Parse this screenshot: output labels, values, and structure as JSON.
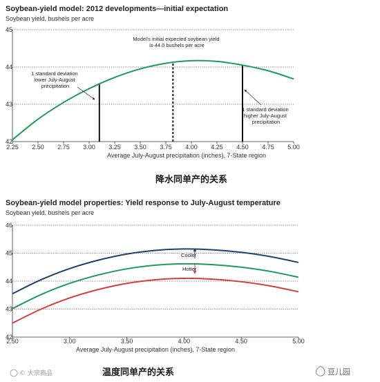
{
  "chart_data": [
    {
      "type": "line",
      "title": "Soybean-yield model: 2012 developments—initial expectation",
      "ylabel": "Soybean yield, bushels per acre",
      "xlabel": "Average July-August precipitation (inches), 7-State region",
      "xlim": [
        2.25,
        5.0
      ],
      "ylim": [
        42,
        45
      ],
      "xticks": [
        "2.25",
        "2.50",
        "2.75",
        "3.00",
        "3.25",
        "3.50",
        "3.75",
        "4.00",
        "4.25",
        "4.50",
        "4.75",
        "5.00"
      ],
      "yticks": [
        "42",
        "43",
        "44",
        "45"
      ],
      "grid": "horizontal dotted",
      "series": [
        {
          "color": "#1e9a55",
          "x": [
            2.25,
            2.5,
            2.75,
            3.0,
            3.25,
            3.5,
            3.75,
            4.0,
            4.25,
            4.5,
            4.75,
            5.0
          ],
          "y": [
            42.05,
            42.6,
            43.05,
            43.42,
            43.72,
            43.95,
            44.1,
            44.17,
            44.15,
            44.05,
            43.9,
            43.68
          ]
        }
      ],
      "vlines": [
        {
          "x": 3.1,
          "style": "solid"
        },
        {
          "x": 3.82,
          "style": "dashed"
        },
        {
          "x": 4.5,
          "style": "solid"
        }
      ],
      "annotations": [
        {
          "lines": [
            "Model's initial expected soybean yield",
            "is 44.0 bushels per acre"
          ]
        },
        {
          "lines": [
            "1 standard deviation",
            "lower July-August",
            "precipitation"
          ]
        },
        {
          "lines": [
            "1 standard deviation",
            "higher July-August",
            "precipitation"
          ]
        }
      ],
      "caption": "降水同单产的关系"
    },
    {
      "type": "line",
      "title": "Soybean-yield model properties: Yield response to July-August temperature",
      "ylabel": "Soybean yield, bushels per acre",
      "xlabel": "Average July-August precipitation (inches), 7-State region",
      "xlim": [
        2.5,
        5.0
      ],
      "ylim": [
        42,
        46
      ],
      "xticks": [
        "2.50",
        "3.00",
        "3.50",
        "4.00",
        "4.50",
        "5.00"
      ],
      "yticks": [
        "42",
        "43",
        "44",
        "45",
        "46"
      ],
      "grid": "horizontal dotted",
      "series": [
        {
          "color": "#1f3f6e",
          "x": [
            2.5,
            2.75,
            3.0,
            3.25,
            3.5,
            3.75,
            4.0,
            4.25,
            4.5,
            4.75,
            5.0
          ],
          "y": [
            43.55,
            44.05,
            44.45,
            44.75,
            44.97,
            45.1,
            45.15,
            45.12,
            45.03,
            44.88,
            44.67
          ]
        },
        {
          "color": "#1e9a55",
          "x": [
            2.5,
            2.75,
            3.0,
            3.25,
            3.5,
            3.75,
            4.0,
            4.25,
            4.5,
            4.75,
            5.0
          ],
          "y": [
            43.02,
            43.52,
            43.92,
            44.22,
            44.44,
            44.57,
            44.62,
            44.59,
            44.5,
            44.35,
            44.14
          ]
        },
        {
          "color": "#d2403a",
          "x": [
            2.5,
            2.75,
            3.0,
            3.25,
            3.5,
            3.75,
            4.0,
            4.25,
            4.5,
            4.75,
            5.0
          ],
          "y": [
            42.5,
            43.0,
            43.4,
            43.7,
            43.92,
            44.05,
            44.1,
            44.07,
            43.98,
            43.83,
            43.62
          ]
        }
      ],
      "annotations": [
        {
          "label": "Cooler",
          "color": "#1f3f6e"
        },
        {
          "label": "Hotter",
          "color": "#d2403a"
        }
      ],
      "caption": "温度同单产的关系"
    }
  ],
  "watermarks": {
    "left": "© 大宗商品",
    "right": "豆儿园"
  },
  "colors": {
    "green": "#1e9a55",
    "navy": "#1f3f6e",
    "red": "#d2403a",
    "arrow_up": "#1f3f6e",
    "arrow_down": "#d2403a"
  }
}
